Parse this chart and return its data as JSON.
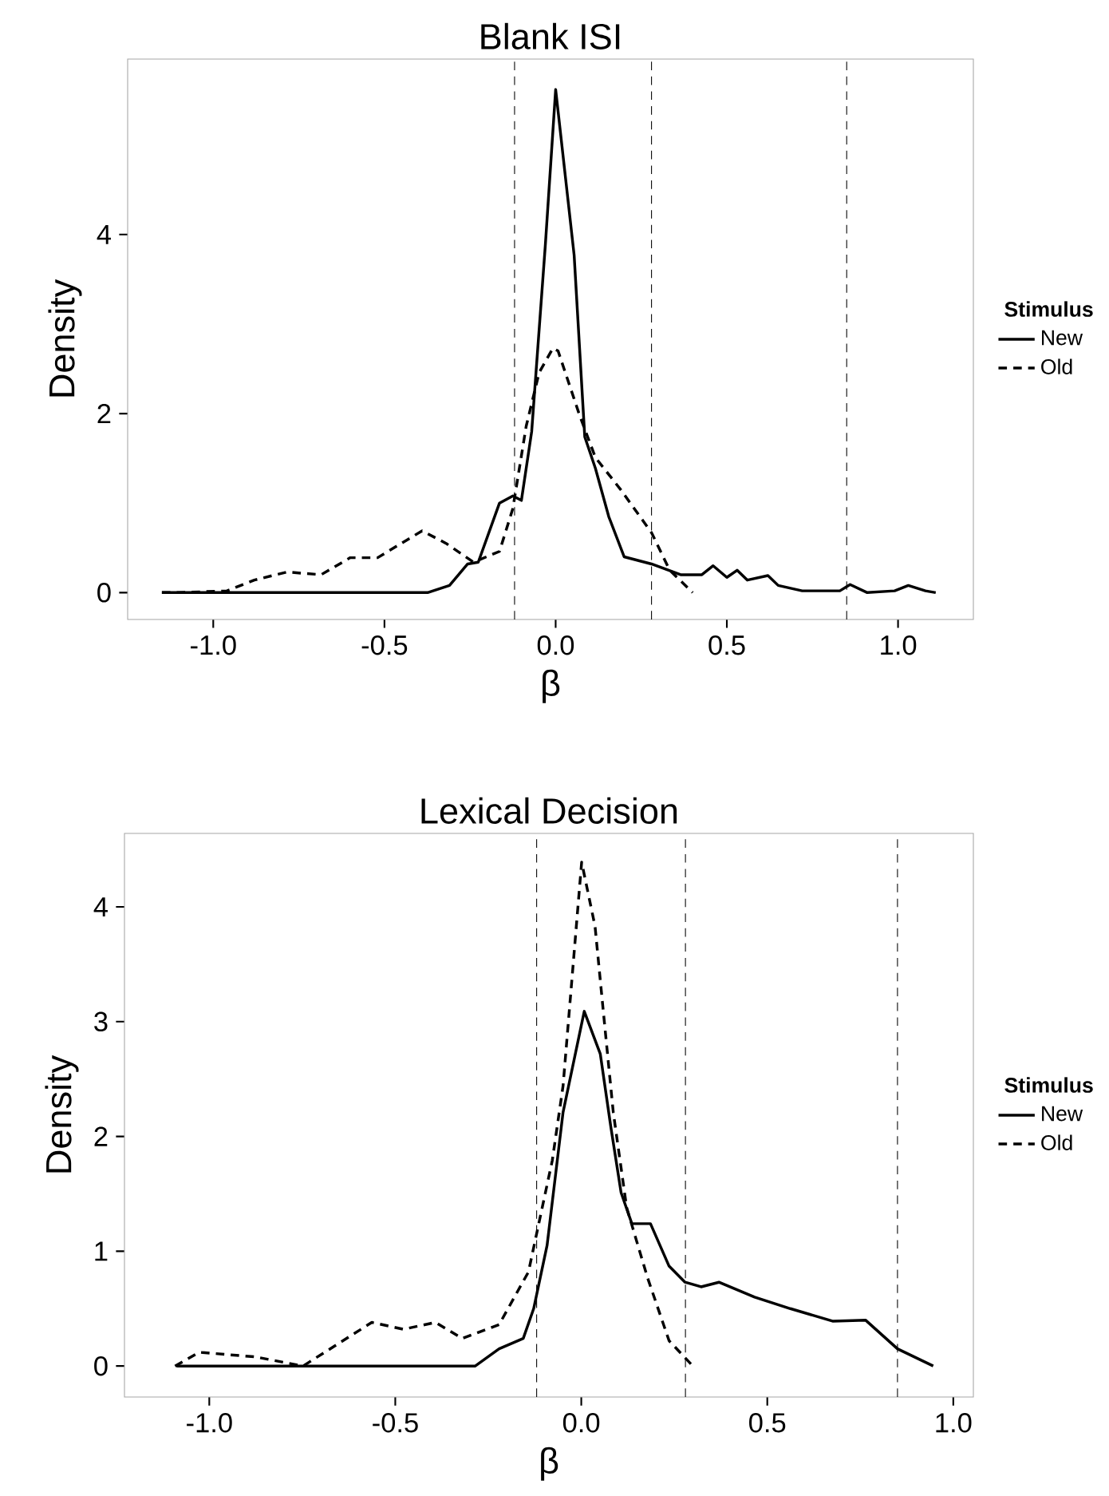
{
  "chart_data": [
    {
      "type": "line",
      "title": "Blank ISI",
      "xlabel": "β",
      "ylabel": "Density",
      "legend_title": "Stimulus",
      "legend": "right",
      "xlim": [
        -1.25,
        1.22
      ],
      "ylim": [
        -0.3,
        5.96
      ],
      "xticks": [
        {
          "value": -1.0,
          "label": "-1.0"
        },
        {
          "value": -0.5,
          "label": "-0.5"
        },
        {
          "value": 0,
          "label": "0.0"
        },
        {
          "value": 0.5,
          "label": "0.5"
        },
        {
          "value": 1.0,
          "label": "1.0"
        }
      ],
      "yticks": [
        0,
        2,
        4
      ],
      "ref_lines": [
        {
          "axis": "x",
          "value": -0.12,
          "line_style": "dashed"
        },
        {
          "axis": "x",
          "value": 0.28,
          "line_style": "dashed"
        },
        {
          "axis": "x",
          "value": 0.85,
          "line_style": "dashed"
        }
      ],
      "series": [
        {
          "name": "New",
          "color": "#000000",
          "line_style": "solid",
          "x": [
            -1.15,
            -0.374,
            -0.31,
            -0.257,
            -0.226,
            -0.164,
            -0.125,
            -0.1,
            -0.07,
            -0.03,
            0.0,
            0.054,
            0.085,
            0.116,
            0.155,
            0.2,
            0.28,
            0.365,
            0.427,
            0.46,
            0.5,
            0.53,
            0.56,
            0.62,
            0.65,
            0.72,
            0.83,
            0.86,
            0.91,
            0.99,
            1.03,
            1.08,
            1.11
          ],
          "values": [
            0,
            0,
            0.08,
            0.32,
            0.34,
            1.0,
            1.08,
            1.03,
            1.8,
            3.89,
            5.62,
            3.77,
            1.74,
            1.39,
            0.85,
            0.4,
            0.32,
            0.2,
            0.2,
            0.3,
            0.17,
            0.25,
            0.14,
            0.19,
            0.08,
            0.02,
            0.02,
            0.09,
            0,
            0.02,
            0.08,
            0.02,
            0
          ]
        },
        {
          "name": "Old",
          "color": "#000000",
          "line_style": "dashed",
          "x": [
            -1.15,
            -1.1,
            -0.96,
            -0.88,
            -0.785,
            -0.685,
            -0.6,
            -0.52,
            -0.39,
            -0.32,
            -0.24,
            -0.164,
            -0.125,
            -0.086,
            -0.048,
            -0.008,
            0.007,
            0.07,
            0.116,
            0.19,
            0.28,
            0.333,
            0.395,
            0.4
          ],
          "values": [
            0,
            0,
            0.02,
            0.14,
            0.23,
            0.2,
            0.39,
            0.39,
            0.69,
            0.55,
            0.34,
            0.46,
            0.94,
            1.86,
            2.46,
            2.73,
            2.7,
            1.98,
            1.51,
            1.15,
            0.67,
            0.25,
            0.02,
            0
          ]
        }
      ]
    },
    {
      "type": "line",
      "title": "Lexical Decision",
      "xlabel": "β",
      "ylabel": "Density",
      "legend_title": "Stimulus",
      "legend": "right",
      "xlim": [
        -1.228,
        1.054
      ],
      "ylim": [
        -0.27,
        4.64
      ],
      "xticks": [
        {
          "value": -1.0,
          "label": "-1.0"
        },
        {
          "value": -0.5,
          "label": "-0.5"
        },
        {
          "value": 0,
          "label": "0.0"
        },
        {
          "value": 0.5,
          "label": "0.5"
        },
        {
          "value": 1.0,
          "label": "1.0"
        }
      ],
      "yticks": [
        0,
        1,
        2,
        3,
        4
      ],
      "ref_lines": [
        {
          "axis": "x",
          "value": -0.12,
          "line_style": "dashed"
        },
        {
          "axis": "x",
          "value": 0.28,
          "line_style": "dashed"
        },
        {
          "axis": "x",
          "value": 0.85,
          "line_style": "dashed"
        }
      ],
      "series": [
        {
          "name": "New",
          "color": "#000000",
          "line_style": "solid",
          "x": [
            -1.088,
            -0.285,
            -0.221,
            -0.156,
            -0.128,
            -0.092,
            -0.049,
            0.008,
            0.051,
            0.08,
            0.107,
            0.136,
            0.186,
            0.236,
            0.279,
            0.322,
            0.37,
            0.466,
            0.562,
            0.677,
            0.764,
            0.85,
            0.946
          ],
          "values": [
            0,
            0,
            0.15,
            0.24,
            0.5,
            1.05,
            2.21,
            3.09,
            2.72,
            2.07,
            1.51,
            1.24,
            1.24,
            0.87,
            0.73,
            0.69,
            0.73,
            0.6,
            0.5,
            0.39,
            0.4,
            0.15,
            0
          ]
        },
        {
          "name": "Old",
          "color": "#000000",
          "line_style": "dashed",
          "x": [
            -1.092,
            -1.027,
            -0.877,
            -0.748,
            -0.563,
            -0.478,
            -0.392,
            -0.32,
            -0.221,
            -0.142,
            -0.078,
            -0.049,
            0.001,
            0.037,
            0.058,
            0.086,
            0.122,
            0.178,
            0.236,
            0.3
          ],
          "values": [
            0,
            0.12,
            0.08,
            0,
            0.38,
            0.32,
            0.38,
            0.24,
            0.36,
            0.82,
            1.79,
            2.44,
            4.39,
            3.83,
            3.13,
            2.21,
            1.38,
            0.77,
            0.22,
            0
          ]
        }
      ]
    }
  ]
}
